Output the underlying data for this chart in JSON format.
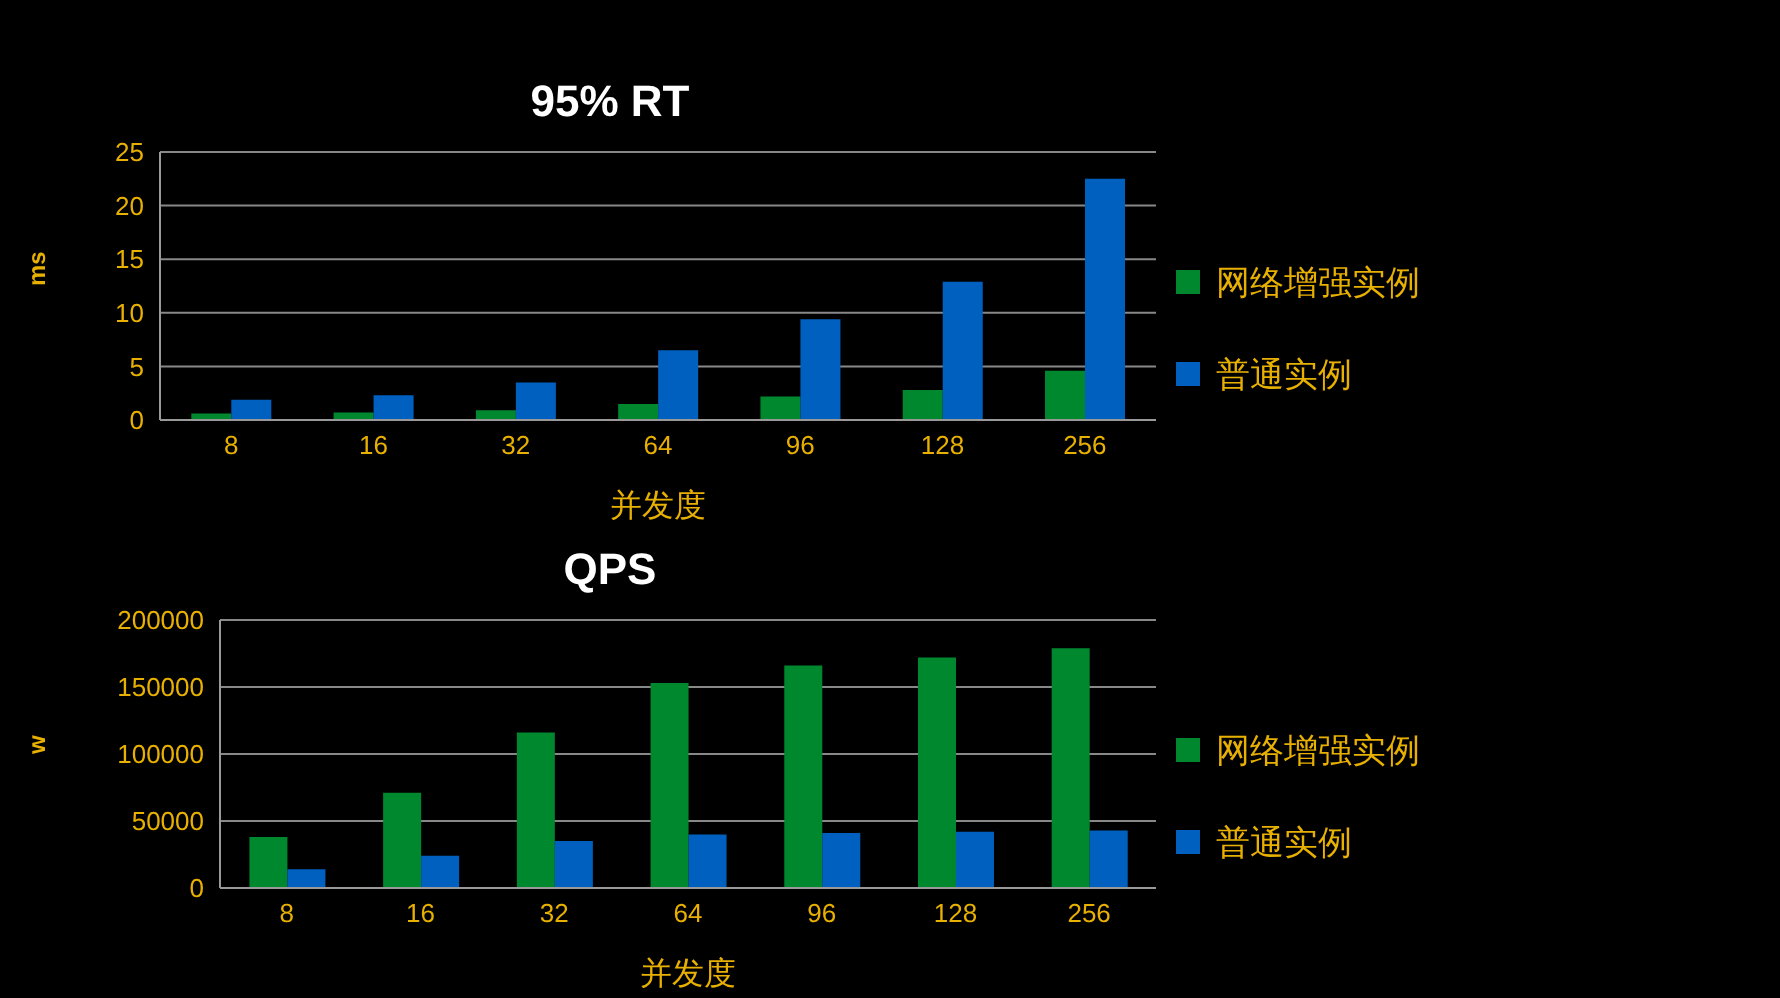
{
  "chart_data": [
    {
      "type": "bar",
      "title": "95% RT",
      "xlabel": "并发度",
      "ylabel": "ms",
      "categories": [
        "8",
        "16",
        "32",
        "64",
        "96",
        "128",
        "256"
      ],
      "series": [
        {
          "name": "网络增强实例",
          "color": "#00882f",
          "values": [
            0.6,
            0.7,
            0.9,
            1.5,
            2.2,
            2.8,
            4.6
          ]
        },
        {
          "name": "普通实例",
          "color": "#0060c0",
          "values": [
            1.9,
            2.3,
            3.5,
            6.5,
            9.4,
            12.9,
            22.5
          ]
        }
      ],
      "ylim": [
        0,
        25
      ],
      "yticks": [
        0,
        5,
        10,
        15,
        20,
        25
      ],
      "grid": "y",
      "legend": "right"
    },
    {
      "type": "bar",
      "title": "QPS",
      "xlabel": "并发度",
      "ylabel": "w",
      "categories": [
        "8",
        "16",
        "32",
        "64",
        "96",
        "128",
        "256"
      ],
      "series": [
        {
          "name": "网络增强实例",
          "color": "#00882f",
          "values": [
            38000,
            71000,
            116000,
            153000,
            166000,
            172000,
            179000
          ]
        },
        {
          "name": "普通实例",
          "color": "#0060c0",
          "values": [
            14000,
            24000,
            35000,
            40000,
            41000,
            42000,
            43000
          ]
        }
      ],
      "ylim": [
        0,
        200000
      ],
      "yticks": [
        0,
        50000,
        100000,
        150000,
        200000
      ],
      "grid": "y",
      "legend": "right"
    }
  ]
}
